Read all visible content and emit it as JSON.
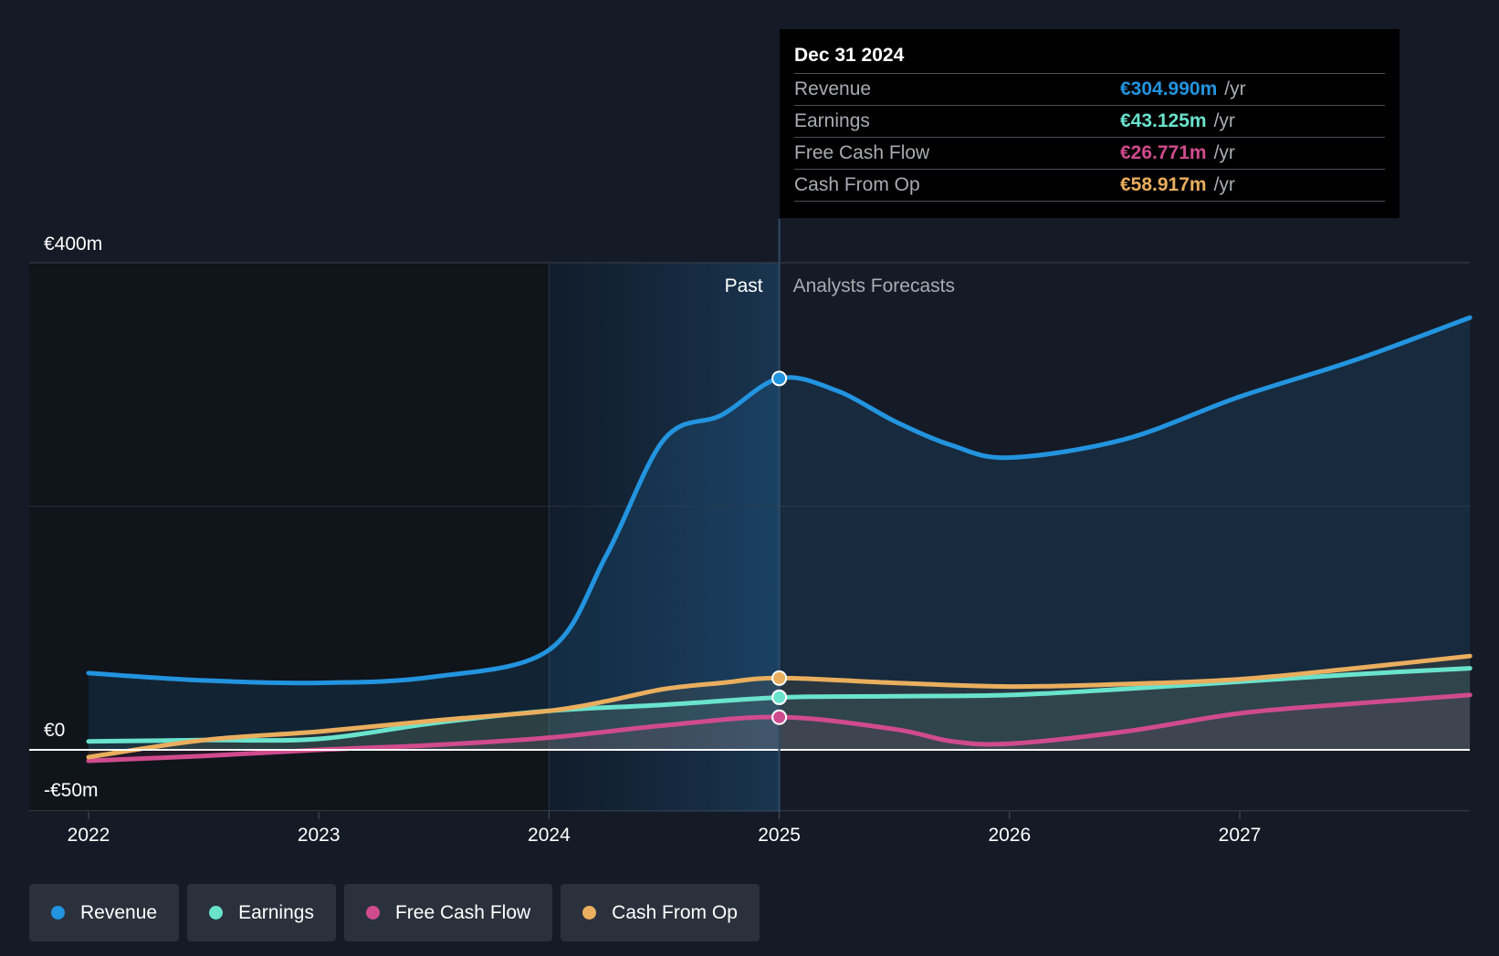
{
  "chart_data": {
    "type": "line",
    "x_range": [
      2021.75,
      2027.99
    ],
    "y_range": [
      -50,
      400
    ],
    "y_ticks": [
      {
        "value": 400,
        "label": "€400m"
      },
      {
        "value": 0,
        "label": "€0"
      },
      {
        "value": -50,
        "label": "-€50m"
      }
    ],
    "x_ticks": [
      {
        "value": 2022,
        "label": "2022"
      },
      {
        "value": 2023,
        "label": "2023"
      },
      {
        "value": 2024,
        "label": "2024"
      },
      {
        "value": 2025,
        "label": "2025"
      },
      {
        "value": 2026,
        "label": "2026"
      },
      {
        "value": 2027,
        "label": "2027"
      }
    ],
    "divider_x": 2025,
    "highlight_start": 2024,
    "past_label": "Past",
    "forecast_label": "Analysts Forecasts",
    "series": [
      {
        "name": "Revenue",
        "color": "#2394df",
        "marker_value": 304.99,
        "points": [
          [
            2022,
            63
          ],
          [
            2022.5,
            57
          ],
          [
            2023,
            55
          ],
          [
            2023.5,
            60
          ],
          [
            2024,
            82
          ],
          [
            2024.25,
            160
          ],
          [
            2024.5,
            255
          ],
          [
            2024.75,
            275
          ],
          [
            2025,
            305
          ],
          [
            2025.25,
            295
          ],
          [
            2025.5,
            270
          ],
          [
            2025.75,
            250
          ],
          [
            2026,
            240
          ],
          [
            2026.5,
            255
          ],
          [
            2027,
            290
          ],
          [
            2027.5,
            320
          ],
          [
            2028,
            355
          ]
        ]
      },
      {
        "name": "Earnings",
        "color": "#6ae3cd",
        "marker_value": 43.125,
        "points": [
          [
            2022,
            7
          ],
          [
            2022.5,
            8
          ],
          [
            2023,
            9
          ],
          [
            2023.5,
            22
          ],
          [
            2024,
            32
          ],
          [
            2024.5,
            37
          ],
          [
            2025,
            43
          ],
          [
            2025.5,
            44
          ],
          [
            2026,
            45
          ],
          [
            2026.5,
            50
          ],
          [
            2027,
            56
          ],
          [
            2027.5,
            62
          ],
          [
            2028,
            67
          ]
        ]
      },
      {
        "name": "Free Cash Flow",
        "color": "#d04b8e",
        "marker_value": 26.771,
        "points": [
          [
            2022,
            -9
          ],
          [
            2022.5,
            -5
          ],
          [
            2023,
            0
          ],
          [
            2023.5,
            4
          ],
          [
            2024,
            10
          ],
          [
            2024.5,
            20
          ],
          [
            2025,
            27
          ],
          [
            2025.5,
            17
          ],
          [
            2025.75,
            7
          ],
          [
            2026,
            5
          ],
          [
            2026.5,
            15
          ],
          [
            2027,
            30
          ],
          [
            2027.5,
            38
          ],
          [
            2028,
            45
          ]
        ]
      },
      {
        "name": "Cash From Op",
        "color": "#e9ae5e",
        "marker_value": 58.917,
        "points": [
          [
            2022,
            -6
          ],
          [
            2022.5,
            8
          ],
          [
            2023,
            15
          ],
          [
            2023.5,
            24
          ],
          [
            2024,
            32
          ],
          [
            2024.25,
            40
          ],
          [
            2024.5,
            50
          ],
          [
            2024.75,
            55
          ],
          [
            2025,
            59
          ],
          [
            2025.5,
            55
          ],
          [
            2026,
            52
          ],
          [
            2026.5,
            54
          ],
          [
            2027,
            58
          ],
          [
            2027.5,
            67
          ],
          [
            2028,
            77
          ]
        ]
      }
    ]
  },
  "tooltip": {
    "date": "Dec 31 2024",
    "rows": [
      {
        "label": "Revenue",
        "value": "€304.990m",
        "unit": "/yr",
        "color": "#2394df"
      },
      {
        "label": "Earnings",
        "value": "€43.125m",
        "unit": "/yr",
        "color": "#6ae3cd"
      },
      {
        "label": "Free Cash Flow",
        "value": "€26.771m",
        "unit": "/yr",
        "color": "#d04b8e"
      },
      {
        "label": "Cash From Op",
        "value": "€58.917m",
        "unit": "/yr",
        "color": "#e9ae5e"
      }
    ]
  },
  "legend": [
    {
      "label": "Revenue",
      "color": "#2394df"
    },
    {
      "label": "Earnings",
      "color": "#6ae3cd"
    },
    {
      "label": "Free Cash Flow",
      "color": "#d04b8e"
    },
    {
      "label": "Cash From Op",
      "color": "#e9ae5e"
    }
  ]
}
